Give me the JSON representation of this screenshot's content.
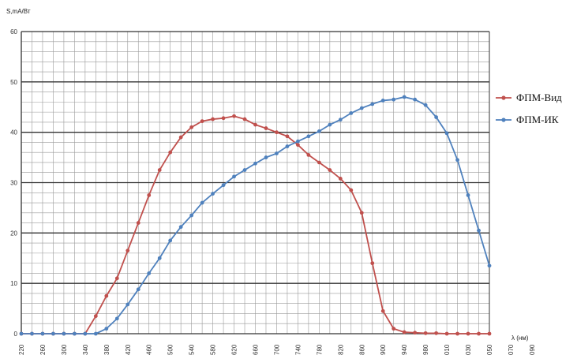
{
  "chart_data": {
    "type": "line",
    "ylabel": "S,mA/Вт",
    "xlabel": "λ (нм)",
    "x_tick_labels": [
      "220",
      "260",
      "300",
      "340",
      "380",
      "420",
      "460",
      "500",
      "540",
      "580",
      "620",
      "660",
      "700",
      "740",
      "780",
      "820",
      "860",
      "900",
      "940",
      "980",
      "010",
      "030",
      "050",
      "070",
      "090"
    ],
    "y_ticks": [
      0,
      10,
      20,
      30,
      40,
      50,
      60
    ],
    "ylim": [
      0,
      60
    ],
    "xlim": [
      220,
      1100
    ],
    "grid": true,
    "legend": "right",
    "series": [
      {
        "name": "ФПМ-Вид",
        "color": "#c0504d",
        "x": [
          220,
          240,
          260,
          280,
          300,
          320,
          340,
          360,
          380,
          400,
          420,
          440,
          460,
          480,
          500,
          520,
          540,
          560,
          580,
          600,
          620,
          640,
          660,
          680,
          700,
          720,
          740,
          760,
          780,
          800,
          820,
          840,
          860,
          880,
          900,
          920,
          940,
          960,
          980,
          1000,
          1020,
          1040,
          1060,
          1080,
          1100
        ],
        "values": [
          0,
          0,
          0,
          0,
          0,
          0,
          0,
          3.5,
          7.5,
          11,
          16.5,
          22,
          27.5,
          32.5,
          36,
          39,
          41,
          42.2,
          42.6,
          42.8,
          43.2,
          42.6,
          41.5,
          40.8,
          40,
          39.2,
          37.5,
          35.5,
          34,
          32.5,
          30.8,
          28.5,
          24,
          14,
          4.5,
          1,
          0.3,
          0.2,
          0.1,
          0.1,
          0,
          0,
          0,
          0,
          0
        ]
      },
      {
        "name": "ФПМ-ИК",
        "color": "#4f81bd",
        "x": [
          220,
          240,
          260,
          280,
          300,
          320,
          340,
          360,
          380,
          400,
          420,
          440,
          460,
          480,
          500,
          520,
          540,
          560,
          580,
          600,
          620,
          640,
          660,
          680,
          700,
          720,
          740,
          760,
          780,
          800,
          820,
          840,
          860,
          880,
          900,
          920,
          940,
          960,
          980,
          1000,
          1020,
          1040,
          1060,
          1080,
          1100
        ],
        "values": [
          0,
          0,
          0,
          0,
          0,
          0,
          0,
          0,
          1,
          3,
          5.8,
          8.8,
          12,
          15,
          18.5,
          21.2,
          23.5,
          26,
          27.8,
          29.5,
          31.2,
          32.5,
          33.8,
          35,
          35.8,
          37.2,
          38.2,
          39.2,
          40.2,
          41.5,
          42.5,
          43.8,
          44.8,
          45.6,
          46.3,
          46.5,
          47,
          46.5,
          45.4,
          43,
          39.8,
          34.5,
          27.5,
          20.5,
          13.5
        ]
      }
    ]
  }
}
